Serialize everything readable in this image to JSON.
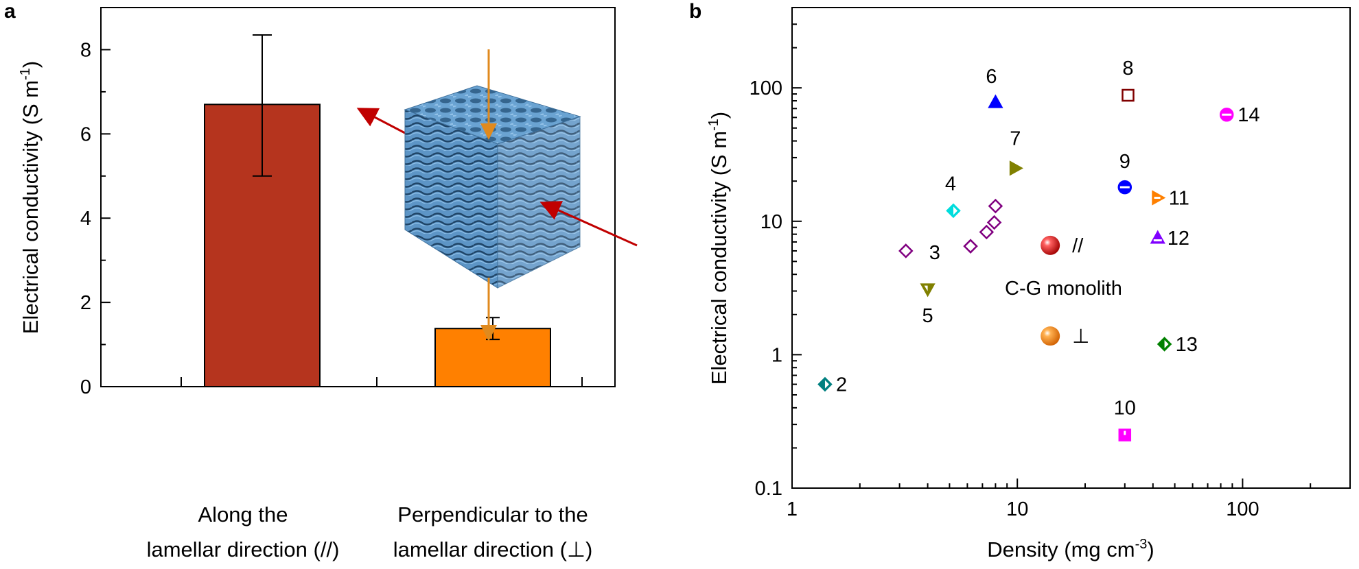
{
  "panel_a": {
    "letter": "a"
  },
  "panel_b": {
    "letter": "b"
  },
  "chart_data": [
    {
      "type": "bar",
      "panel": "a",
      "categories": [
        {
          "line1": "Along the",
          "line2": "lamellar direction (//)"
        },
        {
          "line1": "Perpendicular to the",
          "line2": "lamellar direction (⊥)"
        }
      ],
      "values": [
        6.7,
        1.38
      ],
      "errors": [
        {
          "low": 5.0,
          "high": 8.35
        },
        {
          "low": 1.12,
          "high": 1.64
        }
      ],
      "colors": [
        "#b5341e",
        "#ff8000"
      ],
      "ylabel": "Electrical conductivity (S m",
      "ylabel_sup": "-1",
      "ylabel_close": ")",
      "ylim": [
        0,
        9
      ],
      "yticks": [
        0,
        2,
        4,
        6,
        8
      ],
      "grid": false,
      "inset": "lamellar-cube-illustration"
    },
    {
      "type": "scatter",
      "panel": "b",
      "xscale": "log",
      "yscale": "log",
      "xlim": [
        1,
        300
      ],
      "ylim": [
        0.1,
        400
      ],
      "xticks": [
        "1",
        "10",
        "100"
      ],
      "yticks": [
        "0.1",
        "1",
        "10",
        "100"
      ],
      "xlabel": "Density (mg cm",
      "xlabel_sup": "-3",
      "xlabel_close": ")",
      "ylabel": "Electrical conductivity (S m",
      "ylabel_sup": "-1",
      "ylabel_close": ")",
      "grid": false,
      "points": [
        {
          "label": "2",
          "x": 1.4,
          "y": 0.6,
          "marker": "diamond-half",
          "color": "#008080"
        },
        {
          "label": "3",
          "x": 3.2,
          "y": 6.0,
          "marker": "diamond-open",
          "color": "#800080"
        },
        {
          "label": "",
          "x": 6.2,
          "y": 6.5,
          "marker": "diamond-open",
          "color": "#800080"
        },
        {
          "label": "",
          "x": 7.3,
          "y": 8.3,
          "marker": "diamond-open",
          "color": "#800080"
        },
        {
          "label": "",
          "x": 7.9,
          "y": 9.8,
          "marker": "diamond-open",
          "color": "#800080"
        },
        {
          "label": "",
          "x": 8.0,
          "y": 13.0,
          "marker": "diamond-open",
          "color": "#800080"
        },
        {
          "label": "4",
          "x": 5.2,
          "y": 12.0,
          "marker": "diamond-half",
          "color": "#00dddd"
        },
        {
          "label": "5",
          "x": 4.0,
          "y": 3.1,
          "marker": "triangle-down-half",
          "color": "#808000"
        },
        {
          "label": "6",
          "x": 8.0,
          "y": 78.0,
          "marker": "triangle-up",
          "color": "#0000ff"
        },
        {
          "label": "7",
          "x": 9.8,
          "y": 25.0,
          "marker": "triangle-right",
          "color": "#808000"
        },
        {
          "label": "8",
          "x": 31.0,
          "y": 88.0,
          "marker": "square-open",
          "color": "#800000"
        },
        {
          "label": "9",
          "x": 30.0,
          "y": 18.0,
          "marker": "circle-half",
          "color": "#0000ff"
        },
        {
          "label": "10",
          "x": 30.0,
          "y": 0.25,
          "marker": "square-half",
          "color": "#ff00ff"
        },
        {
          "label": "11",
          "x": 42.0,
          "y": 15.0,
          "marker": "triangle-right-half",
          "color": "#ff8000"
        },
        {
          "label": "12",
          "x": 42.0,
          "y": 7.5,
          "marker": "triangle-up-half",
          "color": "#8000ff"
        },
        {
          "label": "13",
          "x": 45.0,
          "y": 1.2,
          "marker": "diamond-half",
          "color": "#008000"
        },
        {
          "label": "14",
          "x": 85.0,
          "y": 63.0,
          "marker": "circle-half",
          "color": "#ff00ff"
        },
        {
          "label": "//",
          "x": 14.0,
          "y": 6.6,
          "marker": "sphere",
          "color": "#cc0000"
        },
        {
          "label": "⊥",
          "x": 14.0,
          "y": 1.38,
          "marker": "sphere",
          "color": "#ff8a14"
        }
      ],
      "annotation": "C-G monolith"
    }
  ]
}
